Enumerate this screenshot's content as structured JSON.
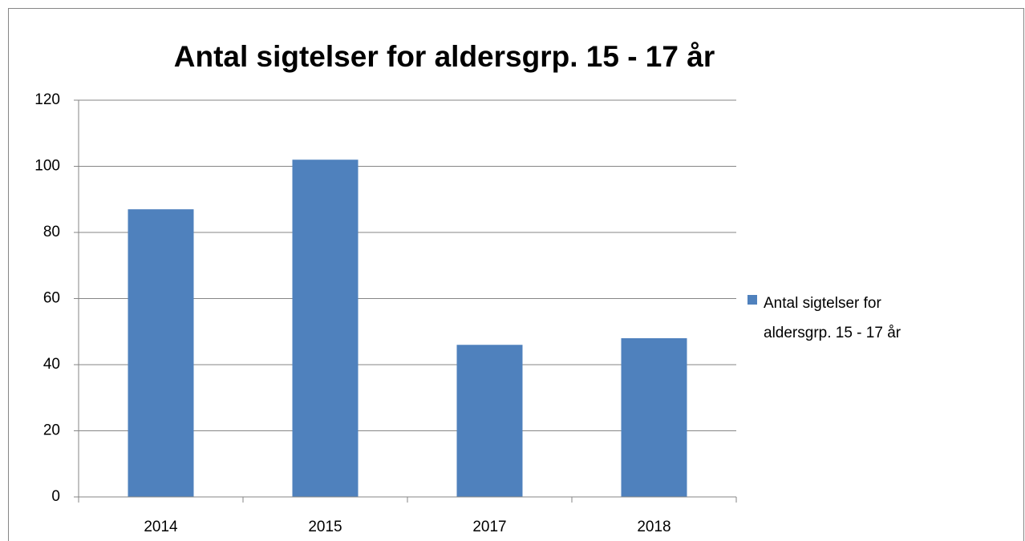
{
  "chart_data": {
    "type": "bar",
    "title": "Antal sigtelser for aldersgrp. 15 - 17 år",
    "categories": [
      "2014",
      "2015",
      "2017",
      "2018"
    ],
    "series": [
      {
        "name": "Antal sigtelser for aldersgrp. 15 - 17 år",
        "color": "#4f81bd",
        "values": [
          87,
          102,
          46,
          48
        ]
      }
    ],
    "ylim": [
      0,
      120
    ],
    "yticks": [
      0,
      20,
      40,
      60,
      80,
      100,
      120
    ],
    "grid": true,
    "legend": "right"
  }
}
